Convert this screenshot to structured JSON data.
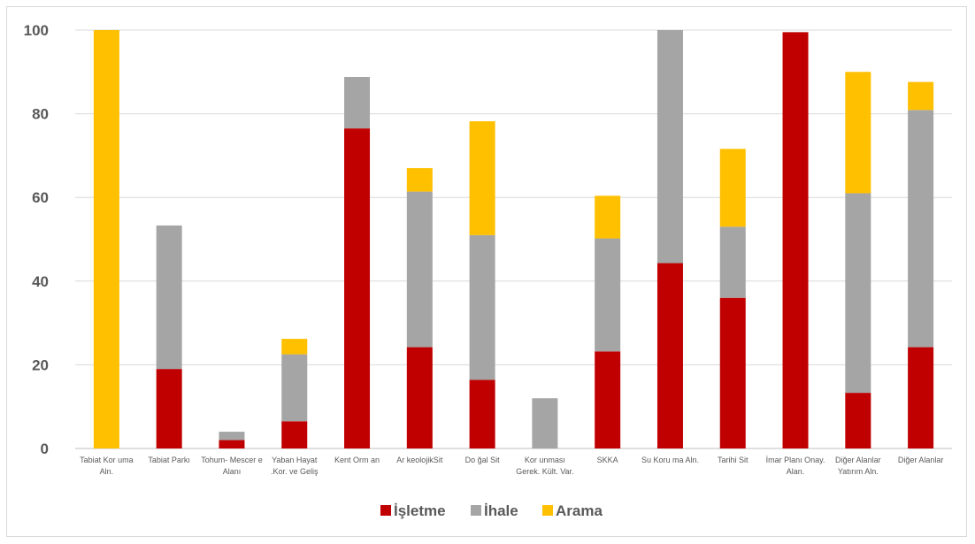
{
  "chart_data": {
    "type": "bar",
    "stacked": true,
    "categories": [
      [
        "Tabiat Kor uma",
        "Aln."
      ],
      [
        "Tabiat Parkı"
      ],
      [
        "Tohum- Mescer e",
        "Alanı"
      ],
      [
        "Yaban Hayat",
        ".Kor. ve Geliş"
      ],
      [
        "Kent Orm an"
      ],
      [
        "Ar keolojikSit"
      ],
      [
        "Do ğal Sit"
      ],
      [
        "Kor unması",
        "Gerek. Kült. Var."
      ],
      [
        "SKKA"
      ],
      [
        "Su Koru ma Aln."
      ],
      [
        "Tarihi Sit"
      ],
      [
        "İmar Planı Onay.",
        "Alan."
      ],
      [
        "Diğer  Alanlar",
        "Yatırım  Aln."
      ],
      [
        "Diğer  Alanlar"
      ]
    ],
    "series": [
      {
        "name": "İşletme",
        "color": "#c00000",
        "values": [
          0,
          19,
          2,
          6.5,
          76.5,
          24.2,
          16.4,
          0,
          23.2,
          44.3,
          36,
          99.5,
          13.3,
          24.2
        ]
      },
      {
        "name": "İhale",
        "color": "#a5a5a5",
        "values": [
          0,
          34.3,
          2,
          16,
          12.3,
          37.2,
          34.6,
          12,
          27,
          55.7,
          17,
          0,
          47.7,
          56.7
        ]
      },
      {
        "name": "Arama",
        "color": "#ffc000",
        "values": [
          100,
          0,
          0,
          3.7,
          0,
          5.6,
          27.2,
          0,
          10.2,
          0,
          18.6,
          0,
          29,
          6.7
        ]
      }
    ],
    "yticks": [
      "0",
      "20",
      "40",
      "60",
      "80",
      "100"
    ],
    "ylim": [
      0,
      100
    ],
    "grid": true,
    "legend_position": "bottom"
  }
}
